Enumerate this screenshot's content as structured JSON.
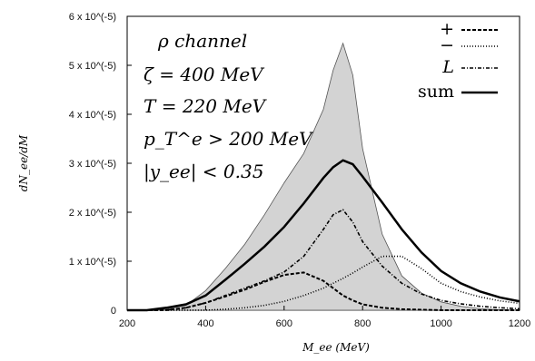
{
  "chart_data": {
    "type": "line",
    "xlabel": "M_ee (MeV)",
    "ylabel": "dN_ee/dM",
    "xlim": [
      200,
      1200
    ],
    "ylim": [
      0,
      6e-05
    ],
    "x_ticks": [
      "200",
      "400",
      "600",
      "800",
      "1000",
      "1200"
    ],
    "y_ticks": [
      "0",
      "1 x 10^(-5)",
      "2 x 10^(-5)",
      "3 x 10^(-5)",
      "4 x 10^(-5)",
      "5 x 10^(-5)",
      "6 x 10^(-5)"
    ],
    "grid": false,
    "legend_position": "top-right",
    "legend": [
      "+",
      "−",
      "L",
      "sum"
    ],
    "annotations": {
      "line1": "ρ channel",
      "line2": "ζ = 400 MeV",
      "line3": "T = 220 MeV",
      "line4": "p_T^e > 200 MeV",
      "line5": "|y_ee| < 0.35"
    },
    "x": [
      200,
      250,
      300,
      350,
      400,
      450,
      500,
      550,
      600,
      650,
      700,
      725,
      750,
      775,
      800,
      850,
      900,
      950,
      1000,
      1050,
      1100,
      1150,
      1200
    ],
    "series": [
      {
        "name": "+",
        "style": "dashed",
        "values": [
          0,
          0,
          0,
          5e-07,
          1.5e-06,
          2.8e-06,
          4.2e-06,
          5.8e-06,
          7.2e-06,
          7.7e-06,
          6e-06,
          4.5e-06,
          3e-06,
          2e-06,
          1.2e-06,
          5e-07,
          2e-07,
          1e-07,
          0,
          0,
          0,
          0,
          0
        ]
      },
      {
        "name": "−",
        "style": "dotted",
        "values": [
          0,
          0,
          0,
          0,
          0,
          2e-07,
          5e-07,
          1e-06,
          1.8e-06,
          3e-06,
          4.5e-06,
          5.5e-06,
          6.5e-06,
          7.6e-06,
          8.8e-06,
          1.1e-05,
          1.1e-05,
          8.5e-06,
          5.5e-06,
          3.8e-06,
          2.7e-06,
          1.9e-06,
          1.4e-06
        ]
      },
      {
        "name": "L",
        "style": "dashdot",
        "values": [
          0,
          0,
          0,
          5e-07,
          1.5e-06,
          3e-06,
          4.5e-06,
          6e-06,
          7.8e-06,
          1.1e-05,
          1.65e-05,
          1.95e-05,
          2.05e-05,
          1.8e-05,
          1.4e-05,
          9e-06,
          5.5e-06,
          3.3e-06,
          2e-06,
          1.3e-06,
          8e-07,
          5e-07,
          3e-07
        ]
      },
      {
        "name": "sum",
        "style": "solid",
        "values": [
          0,
          0,
          5e-07,
          1.2e-06,
          3e-06,
          6.2e-06,
          9.5e-06,
          1.3e-05,
          1.7e-05,
          2.18e-05,
          2.7e-05,
          2.92e-05,
          3.06e-05,
          2.98e-05,
          2.73e-05,
          2.2e-05,
          1.65e-05,
          1.18e-05,
          8e-06,
          5.5e-06,
          3.8e-06,
          2.6e-06,
          1.8e-06
        ]
      },
      {
        "name": "envelope",
        "style": "filled-gray",
        "values": [
          0,
          0,
          2e-07,
          1e-06,
          4e-06,
          8.5e-06,
          1.35e-05,
          1.95e-05,
          2.6e-05,
          3.2e-05,
          4.1e-05,
          4.9e-05,
          5.45e-05,
          4.8e-05,
          3.3e-05,
          1.55e-05,
          7e-06,
          3.5e-06,
          1.7e-06,
          8e-07,
          3e-07,
          1e-07,
          0
        ]
      }
    ]
  }
}
